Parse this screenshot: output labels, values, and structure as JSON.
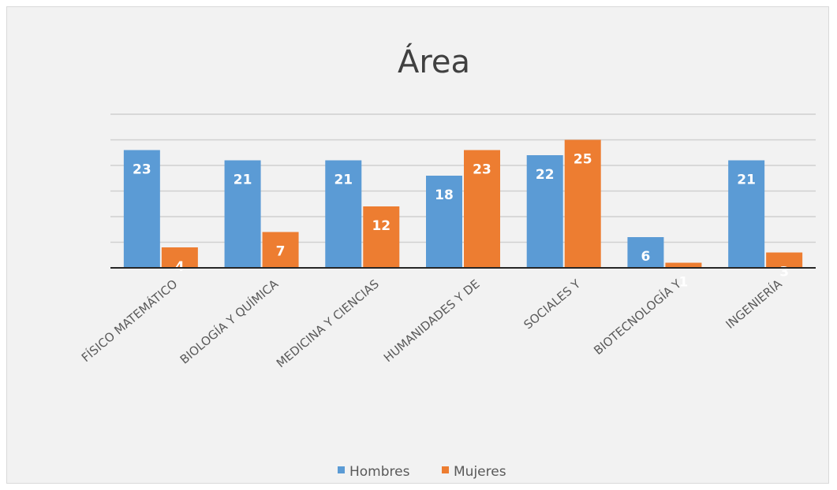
{
  "chart_data": {
    "type": "bar",
    "title": "Área",
    "xlabel": "",
    "ylabel": "",
    "categories": [
      "FÍSICO MATEMÁTICO",
      "BIOLOGÍA Y QUÍMICA",
      "MEDICINA Y CIENCIAS",
      "HUMANIDADES Y DE",
      "SOCIALES Y",
      "BIOTECNOLOGÍA Y",
      "INGENIERÍA"
    ],
    "series": [
      {
        "name": "Hombres",
        "color": "#5b9bd5",
        "values": [
          23,
          21,
          21,
          18,
          22,
          6,
          21
        ]
      },
      {
        "name": "Mujeres",
        "color": "#ed7d31",
        "values": [
          4,
          7,
          12,
          23,
          25,
          1,
          3
        ]
      }
    ],
    "ylim": [
      0,
      30
    ],
    "grid": true,
    "show_y_axis_labels": false,
    "data_labels": true,
    "legend_position": "bottom"
  }
}
